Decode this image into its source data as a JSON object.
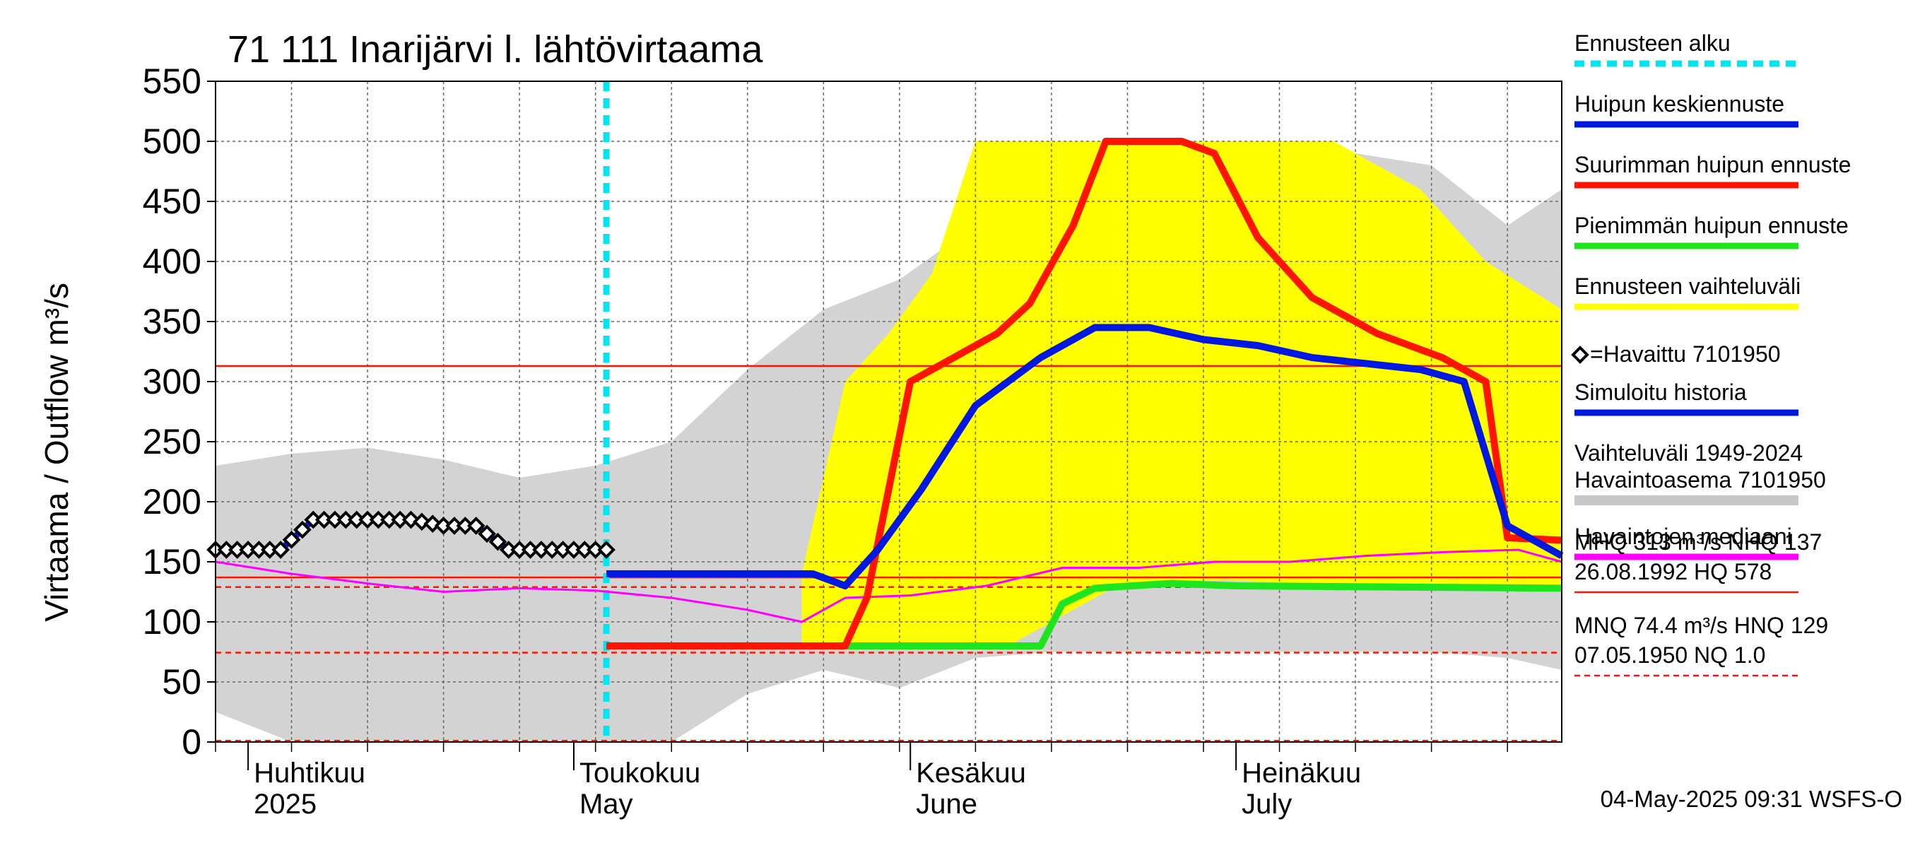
{
  "chart_data": {
    "type": "line",
    "title": "71 111 Inarijärvi l. lähtövirtaama",
    "ylabel": "Virtaama / Outflow    m³/s",
    "ylim": [
      0,
      550
    ],
    "yticks": [
      0,
      50,
      100,
      150,
      200,
      250,
      300,
      350,
      400,
      450,
      500,
      550
    ],
    "x_range": [
      "2025-03-29",
      "2025-07-31"
    ],
    "month_labels": [
      {
        "fi": "Huhtikuu",
        "en": "2025",
        "date": "2025-04-01"
      },
      {
        "fi": "Toukokuu",
        "en": "May",
        "date": "2025-05-01"
      },
      {
        "fi": "Kesäkuu",
        "en": "June",
        "date": "2025-06-01"
      },
      {
        "fi": "Heinäkuu",
        "en": "July",
        "date": "2025-07-01"
      }
    ],
    "forecast_start": "2025-05-04",
    "reference_lines": {
      "MHQ": 313,
      "NHQ": 137,
      "HNQ": 129,
      "MNQ": 74.4,
      "NQ": 1.0
    },
    "series": [
      {
        "name": "Vaihteluväli 1949-2024 Havaintoasema 7101950",
        "kind": "band",
        "x": [
          "2025-03-29",
          "2025-04-05",
          "2025-04-12",
          "2025-04-19",
          "2025-04-26",
          "2025-05-03",
          "2025-05-10",
          "2025-05-17",
          "2025-05-24",
          "2025-05-31",
          "2025-06-07",
          "2025-06-14",
          "2025-06-21",
          "2025-06-28",
          "2025-07-05",
          "2025-07-12",
          "2025-07-19",
          "2025-07-26",
          "2025-07-31"
        ],
        "low": [
          25,
          0,
          0,
          0,
          0,
          0,
          0,
          40,
          60,
          45,
          70,
          75,
          75,
          75,
          75,
          75,
          75,
          70,
          60
        ],
        "high": [
          230,
          240,
          245,
          235,
          220,
          230,
          250,
          310,
          360,
          385,
          430,
          500,
          500,
          500,
          495,
          490,
          480,
          430,
          460
        ]
      },
      {
        "name": "Ennusteen vaihteluväli",
        "kind": "band",
        "x": [
          "2025-05-22",
          "2025-05-26",
          "2025-05-30",
          "2025-06-03",
          "2025-06-07",
          "2025-06-10",
          "2025-06-20",
          "2025-06-30",
          "2025-07-10",
          "2025-07-18",
          "2025-07-24",
          "2025-07-31"
        ],
        "low": [
          80,
          80,
          80,
          80,
          80,
          80,
          130,
          135,
          130,
          128,
          128,
          128
        ],
        "high": [
          140,
          300,
          340,
          390,
          500,
          500,
          500,
          500,
          500,
          460,
          400,
          360
        ]
      },
      {
        "name": "Suurimman huipun ennuste",
        "x": [
          "2025-05-04",
          "2025-05-26",
          "2025-05-28",
          "2025-06-01",
          "2025-06-05",
          "2025-06-09",
          "2025-06-12",
          "2025-06-16",
          "2025-06-19",
          "2025-06-26",
          "2025-06-29",
          "2025-07-03",
          "2025-07-08",
          "2025-07-14",
          "2025-07-20",
          "2025-07-24",
          "2025-07-26",
          "2025-07-31"
        ],
        "values": [
          80,
          80,
          120,
          300,
          320,
          340,
          365,
          430,
          500,
          500,
          490,
          420,
          370,
          340,
          320,
          300,
          170,
          168
        ]
      },
      {
        "name": "Huipun keskiennuste",
        "x": [
          "2025-05-04",
          "2025-05-23",
          "2025-05-26",
          "2025-05-29",
          "2025-06-02",
          "2025-06-07",
          "2025-06-13",
          "2025-06-18",
          "2025-06-23",
          "2025-06-28",
          "2025-07-03",
          "2025-07-08",
          "2025-07-13",
          "2025-07-18",
          "2025-07-22",
          "2025-07-26",
          "2025-07-31"
        ],
        "values": [
          140,
          140,
          130,
          160,
          210,
          280,
          320,
          345,
          345,
          335,
          330,
          320,
          315,
          310,
          300,
          180,
          155
        ]
      },
      {
        "name": "Pienimmän huipun ennuste",
        "x": [
          "2025-05-26",
          "2025-06-13",
          "2025-06-15",
          "2025-06-18",
          "2025-06-25",
          "2025-07-01",
          "2025-07-31"
        ],
        "values": [
          80,
          80,
          115,
          128,
          132,
          130,
          128
        ]
      },
      {
        "name": "Havaintojen mediaani",
        "x": [
          "2025-03-29",
          "2025-04-05",
          "2025-04-12",
          "2025-04-19",
          "2025-04-26",
          "2025-05-03",
          "2025-05-10",
          "2025-05-17",
          "2025-05-22",
          "2025-05-26",
          "2025-06-01",
          "2025-06-08",
          "2025-06-15",
          "2025-06-22",
          "2025-06-29",
          "2025-07-06",
          "2025-07-13",
          "2025-07-20",
          "2025-07-27",
          "2025-07-31"
        ],
        "values": [
          150,
          140,
          132,
          125,
          128,
          126,
          120,
          110,
          100,
          120,
          122,
          130,
          145,
          145,
          150,
          150,
          155,
          158,
          160,
          150
        ]
      },
      {
        "name": "Havaittu 7101950",
        "x": [
          "2025-03-29",
          "2025-04-01",
          "2025-04-04",
          "2025-04-07",
          "2025-04-10",
          "2025-04-13",
          "2025-04-16",
          "2025-04-19",
          "2025-04-22",
          "2025-04-25",
          "2025-04-28",
          "2025-05-01",
          "2025-05-04"
        ],
        "values": [
          160,
          160,
          160,
          185,
          185,
          185,
          185,
          180,
          180,
          160,
          160,
          160,
          160
        ]
      }
    ],
    "legend": {
      "position": "right",
      "entries": [
        {
          "label": "Ennusteen alku",
          "color": "#00e5f0",
          "style": "dashed"
        },
        {
          "label": "Huipun keskiennuste",
          "color": "#0018e0",
          "style": "solid"
        },
        {
          "label": "Suurimman huipun ennuste",
          "color": "#ff1400",
          "style": "solid"
        },
        {
          "label": "Pienimmän huipun ennuste",
          "color": "#1fe51f",
          "style": "solid"
        },
        {
          "label": "Ennusteen vaihteluväli",
          "color": "#ffff00",
          "style": "solid"
        },
        {
          "label": "=Havaittu 7101950",
          "color": "#000000",
          "style": "marker"
        },
        {
          "label": "Simuloitu historia",
          "color": "#0018e0",
          "style": "solid"
        },
        {
          "label": "Vaihteluväli 1949-2024",
          "label2": " Havaintoasema 7101950",
          "color": "#c8c8c8",
          "style": "solid"
        },
        {
          "label": "Havaintojen mediaani",
          "color": "#ff00ff",
          "style": "solid"
        }
      ]
    },
    "stats": [
      {
        "line1": "MHQ  313 m³/s NHQ  137",
        "line2": "26.08.1992 HQ  578"
      },
      {
        "line1": "MNQ 74.4 m³/s HNQ  129",
        "line2": "07.05.1950 NQ  1.0"
      }
    ],
    "footer": "04-May-2025 09:31 WSFS-O",
    "colors": {
      "band_hist": "#d3d3d3",
      "band_forecast": "#ffff00",
      "max": "#ff1400",
      "mean": "#0018e0",
      "min": "#1fe51f",
      "median": "#ff00ff",
      "forecast_start": "#00e5f0",
      "ref_line": "#ff1400"
    }
  }
}
